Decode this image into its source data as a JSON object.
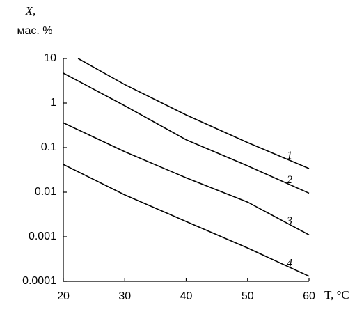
{
  "chart_data": {
    "type": "line",
    "log_y": true,
    "y_label": "X,",
    "y_unit_label": "мас. %",
    "x_label": "T, °C",
    "xlim": [
      20,
      60
    ],
    "xticks": [
      20,
      30,
      40,
      50,
      60
    ],
    "ylim": [
      0.0001,
      10
    ],
    "yticks": [
      10,
      1,
      0.1,
      0.01,
      0.001,
      0.0001
    ],
    "series": [
      {
        "name": "1",
        "color": "#000000",
        "x": [
          22.4,
          30,
          40,
          50,
          60
        ],
        "values": [
          10,
          2.6,
          0.54,
          0.13,
          0.034
        ]
      },
      {
        "name": "2",
        "color": "#000000",
        "x": [
          20,
          30,
          40,
          50,
          60
        ],
        "values": [
          4.7,
          0.87,
          0.15,
          0.039,
          0.0095
        ]
      },
      {
        "name": "3",
        "color": "#000000",
        "x": [
          20,
          30,
          40,
          50,
          60
        ],
        "values": [
          0.36,
          0.081,
          0.021,
          0.006,
          0.0011
        ]
      },
      {
        "name": "4",
        "color": "#000000",
        "x": [
          20,
          30,
          40,
          50,
          60
        ],
        "values": [
          0.042,
          0.0087,
          0.0022,
          0.00056,
          0.00013
        ]
      }
    ]
  }
}
